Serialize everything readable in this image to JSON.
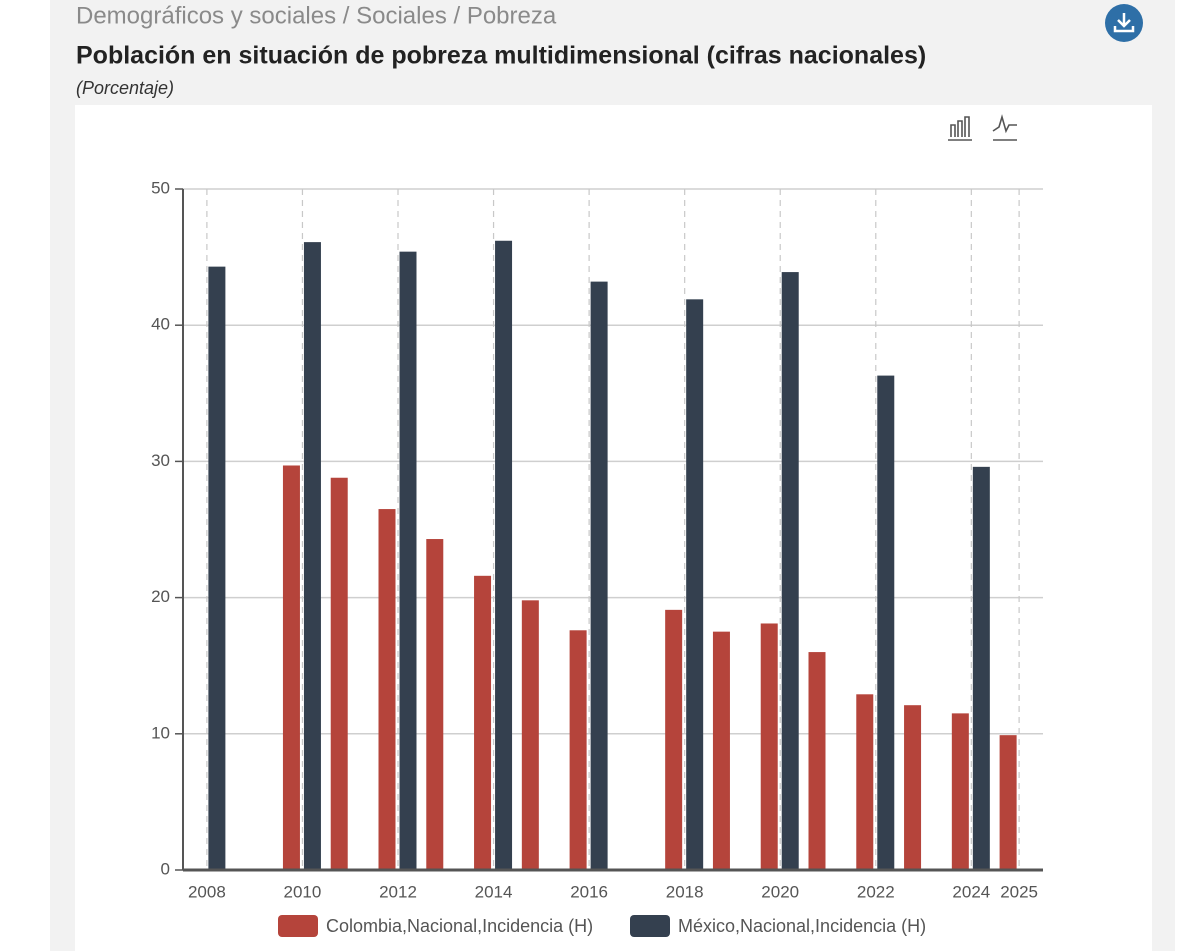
{
  "breadcrumb": "Demográficos y sociales / Sociales / Pobreza",
  "chart_data": {
    "type": "bar",
    "title": "Población en situación de pobreza multidimensional (cifras nacionales)",
    "subtitle": "(Porcentaje)",
    "categories": [
      "2008",
      null,
      "2010",
      null,
      "2012",
      null,
      "2014",
      null,
      "2016",
      null,
      "2018",
      null,
      "2020",
      null,
      "2022",
      null,
      "2024",
      "2025"
    ],
    "series": [
      {
        "name": "Colombia,Nacional,Incidencia (H)",
        "color": "#b5443b",
        "values": [
          null,
          null,
          29.7,
          28.8,
          26.5,
          24.3,
          21.6,
          19.8,
          17.6,
          null,
          19.1,
          17.5,
          18.1,
          16.0,
          12.9,
          12.1,
          11.5,
          9.9
        ]
      },
      {
        "name": "México,Nacional,Incidencia (H)",
        "color": "#34404f",
        "values": [
          44.3,
          null,
          46.1,
          null,
          45.4,
          null,
          46.2,
          null,
          43.2,
          null,
          41.9,
          null,
          43.9,
          null,
          36.3,
          null,
          29.6,
          null
        ]
      }
    ],
    "ylim": [
      0,
      50
    ],
    "yticks": [
      0,
      10,
      20,
      30,
      40,
      50
    ],
    "grid": true,
    "legend": "bottom"
  }
}
